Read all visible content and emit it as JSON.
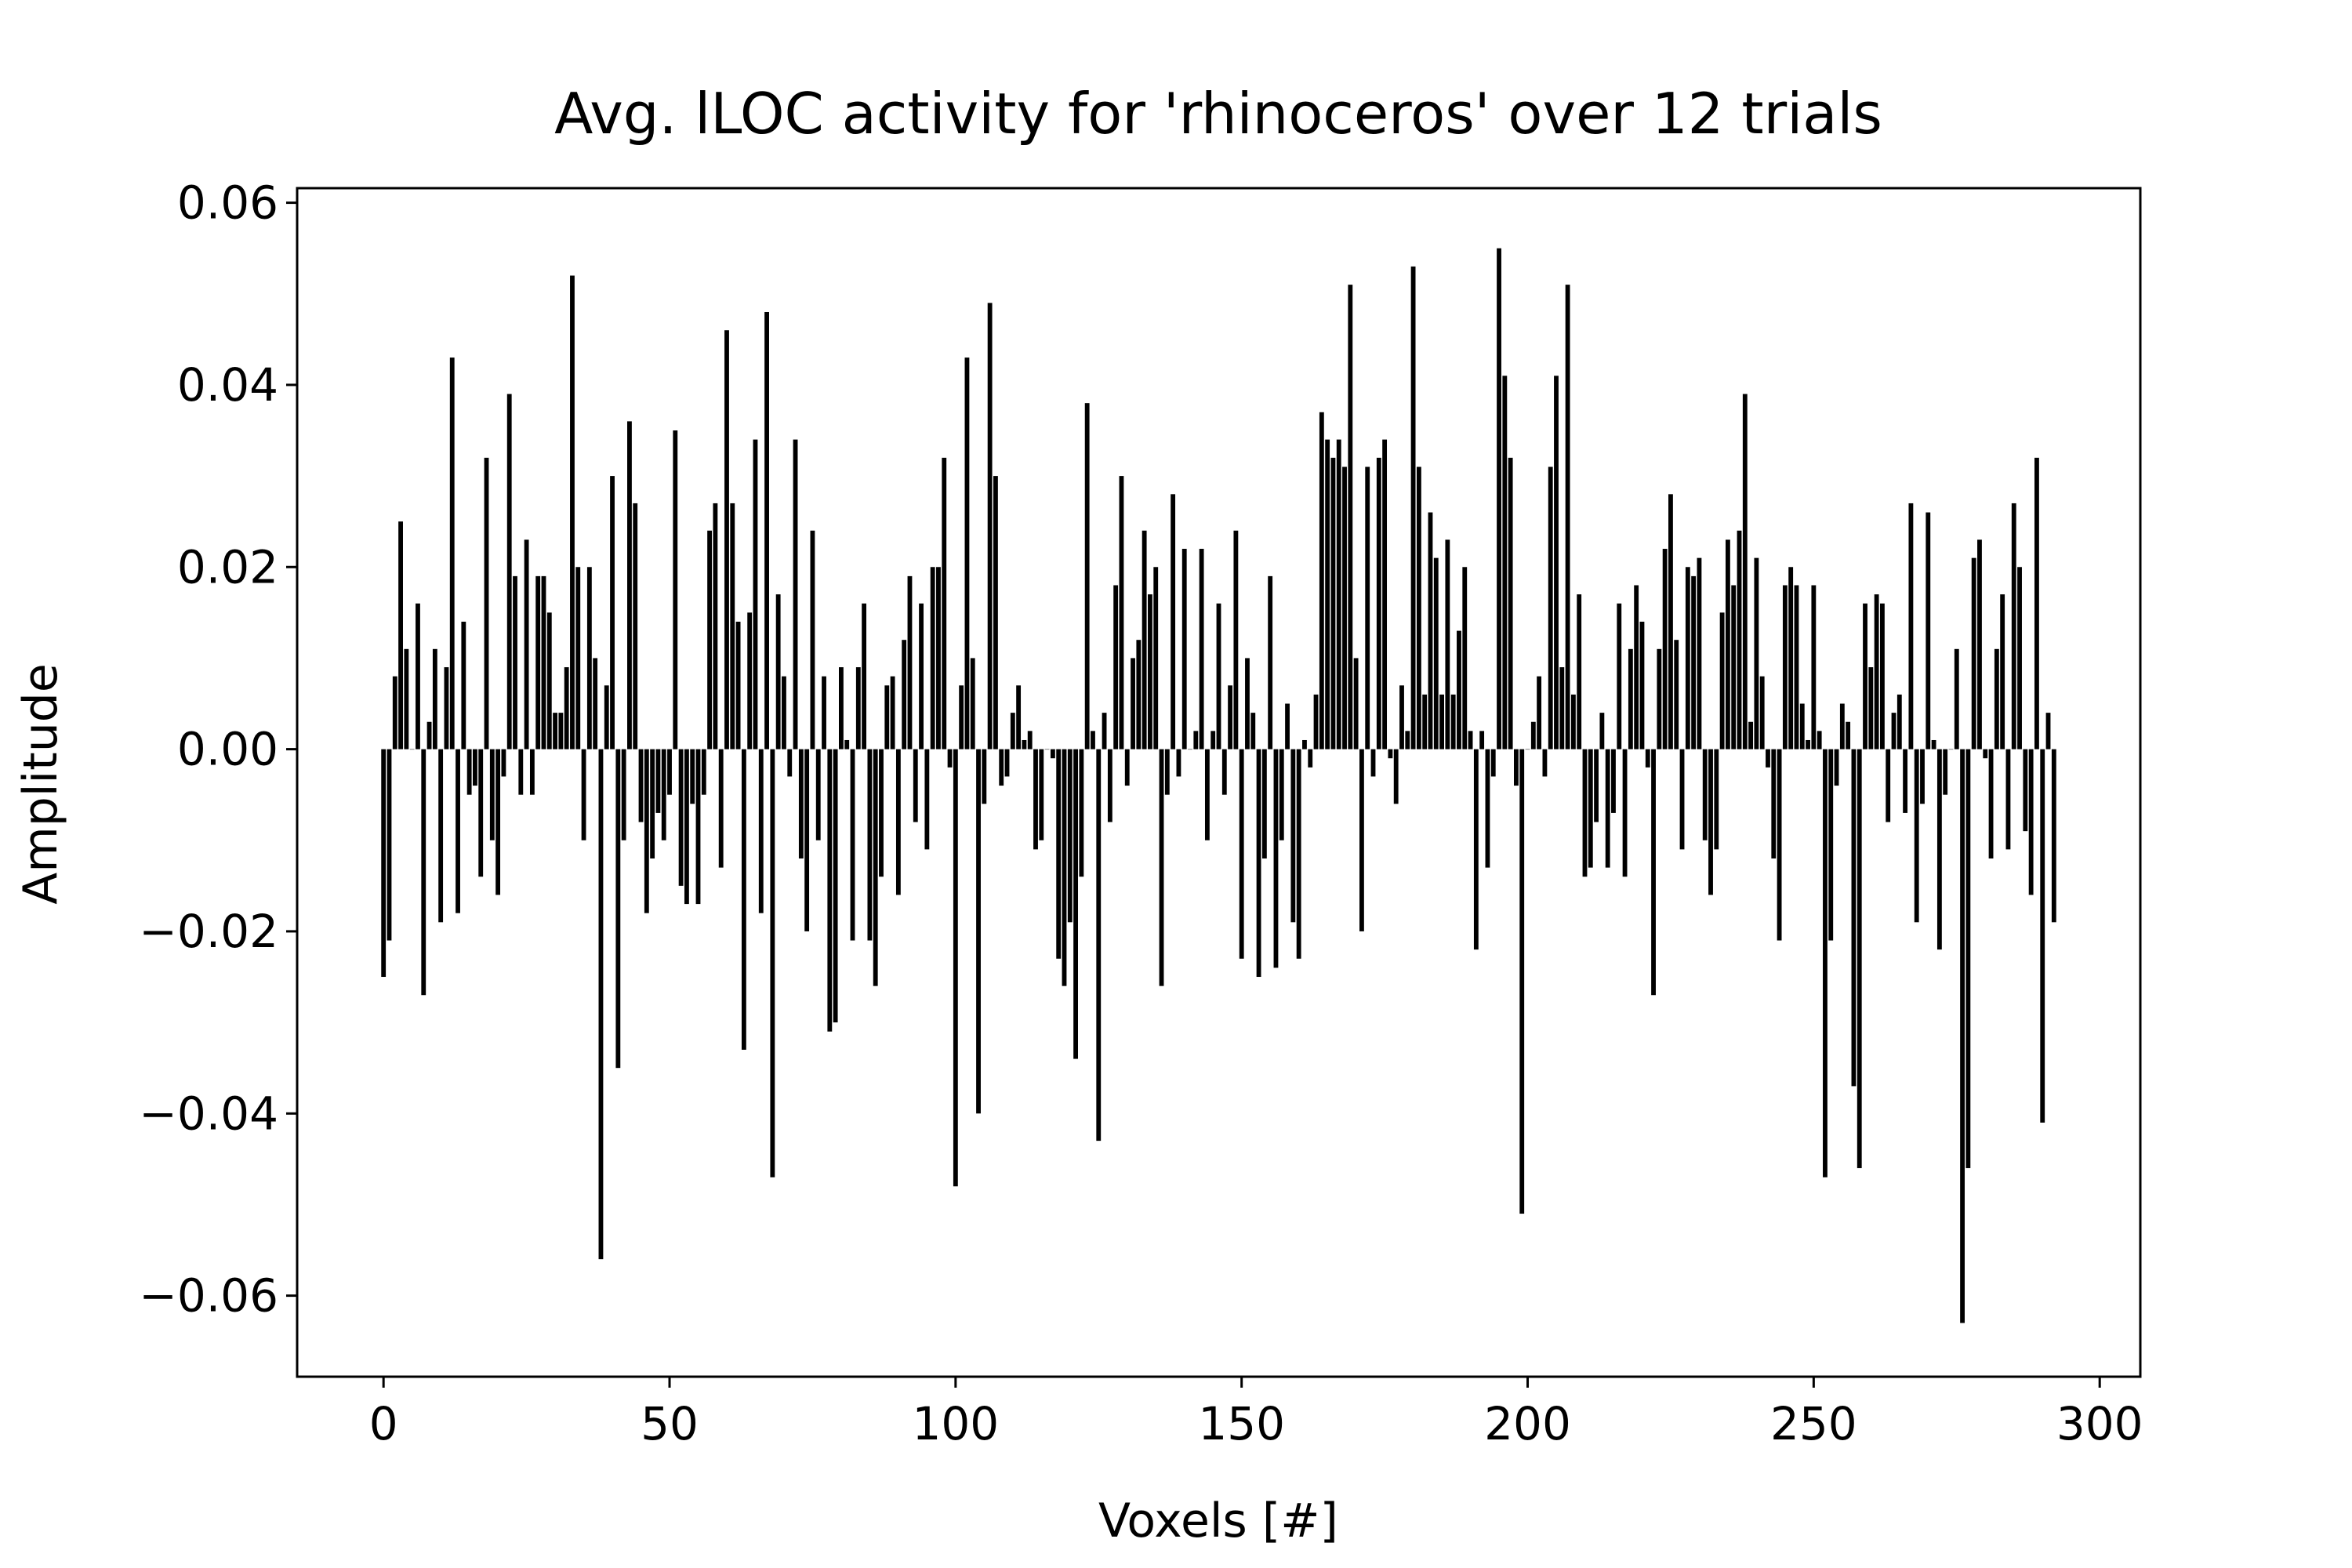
{
  "chart_data": {
    "type": "bar",
    "title": "Avg. lLOC activity for 'rhinoceros' over 12 trials",
    "x_label": "Voxels [#]",
    "y_label": "Amplitude",
    "color": "#000000",
    "x": [
      0,
      1,
      2,
      3,
      4,
      5,
      6,
      7,
      8,
      9,
      10,
      11,
      12,
      13,
      14,
      15,
      16,
      17,
      18,
      19,
      20,
      21,
      22,
      23,
      24,
      25,
      26,
      27,
      28,
      29,
      30,
      31,
      32,
      33,
      34,
      35,
      36,
      37,
      38,
      39,
      40,
      41,
      42,
      43,
      44,
      45,
      46,
      47,
      48,
      49,
      50,
      51,
      52,
      53,
      54,
      55,
      56,
      57,
      58,
      59,
      60,
      61,
      62,
      63,
      64,
      65,
      66,
      67,
      68,
      69,
      70,
      71,
      72,
      73,
      74,
      75,
      76,
      77,
      78,
      79,
      80,
      81,
      82,
      83,
      84,
      85,
      86,
      87,
      88,
      89,
      90,
      91,
      92,
      93,
      94,
      95,
      96,
      97,
      98,
      99,
      100,
      101,
      102,
      103,
      104,
      105,
      106,
      107,
      108,
      109,
      110,
      111,
      112,
      113,
      114,
      115,
      116,
      117,
      118,
      119,
      120,
      121,
      122,
      123,
      124,
      125,
      126,
      127,
      128,
      129,
      130,
      131,
      132,
      133,
      134,
      135,
      136,
      137,
      138,
      139,
      140,
      141,
      142,
      143,
      144,
      145,
      146,
      147,
      148,
      149,
      150,
      151,
      152,
      153,
      154,
      155,
      156,
      157,
      158,
      159,
      160,
      161,
      162,
      163,
      164,
      165,
      166,
      167,
      168,
      169,
      170,
      171,
      172,
      173,
      174,
      175,
      176,
      177,
      178,
      179,
      180,
      181,
      182,
      183,
      184,
      185,
      186,
      187,
      188,
      189,
      190,
      191,
      192,
      193,
      194,
      195,
      196,
      197,
      198,
      199,
      200,
      201,
      202,
      203,
      204,
      205,
      206,
      207,
      208,
      209,
      210,
      211,
      212,
      213,
      214,
      215,
      216,
      217,
      218,
      219,
      220,
      221,
      222,
      223,
      224,
      225,
      226,
      227,
      228,
      229,
      230,
      231,
      232,
      233,
      234,
      235,
      236,
      237,
      238,
      239,
      240,
      241,
      242,
      243,
      244,
      245,
      246,
      247,
      248,
      249,
      250,
      251,
      252,
      253,
      254,
      255,
      256,
      257,
      258,
      259,
      260,
      261,
      262,
      263,
      264,
      265,
      266,
      267,
      268,
      269,
      270,
      271,
      272,
      273,
      274,
      275,
      276,
      277,
      278,
      279,
      280,
      281,
      282,
      283,
      284,
      285,
      286,
      287,
      288,
      289,
      290,
      291,
      292
    ],
    "values": [
      -0.025,
      -0.021,
      0.008,
      0.025,
      0.011,
      0.0,
      0.016,
      -0.027,
      0.003,
      0.011,
      -0.019,
      0.009,
      0.043,
      -0.018,
      0.014,
      -0.005,
      -0.004,
      -0.014,
      0.032,
      -0.01,
      -0.016,
      -0.003,
      0.039,
      0.019,
      -0.005,
      0.023,
      -0.005,
      0.019,
      0.019,
      0.015,
      0.004,
      0.004,
      0.009,
      0.052,
      0.02,
      -0.01,
      0.02,
      0.01,
      -0.056,
      0.007,
      0.03,
      -0.035,
      -0.01,
      0.036,
      0.027,
      -0.008,
      -0.018,
      -0.012,
      -0.007,
      -0.01,
      -0.005,
      0.035,
      -0.015,
      -0.017,
      -0.006,
      -0.017,
      -0.005,
      0.024,
      0.027,
      -0.013,
      0.046,
      0.027,
      0.014,
      -0.033,
      0.015,
      0.034,
      -0.018,
      0.048,
      -0.047,
      0.017,
      0.008,
      -0.003,
      0.034,
      -0.012,
      -0.02,
      0.024,
      -0.01,
      0.008,
      -0.031,
      -0.03,
      0.009,
      0.001,
      -0.021,
      0.009,
      0.016,
      -0.021,
      -0.026,
      -0.014,
      0.007,
      0.008,
      -0.016,
      0.012,
      0.019,
      -0.008,
      0.016,
      -0.011,
      0.02,
      0.02,
      0.032,
      -0.002,
      -0.048,
      0.007,
      0.043,
      0.01,
      -0.04,
      -0.006,
      0.049,
      0.03,
      -0.004,
      -0.003,
      0.004,
      0.007,
      0.001,
      0.002,
      -0.011,
      -0.01,
      0.0,
      -0.001,
      -0.023,
      -0.026,
      -0.019,
      -0.034,
      -0.014,
      0.038,
      0.002,
      -0.043,
      0.004,
      -0.008,
      0.018,
      0.03,
      -0.004,
      0.01,
      0.012,
      0.024,
      0.017,
      0.02,
      -0.026,
      -0.005,
      0.028,
      -0.003,
      0.022,
      0.0,
      0.002,
      0.022,
      -0.01,
      0.002,
      0.016,
      -0.005,
      0.007,
      0.024,
      -0.023,
      0.01,
      0.004,
      -0.025,
      -0.012,
      0.019,
      -0.024,
      -0.01,
      0.005,
      -0.019,
      -0.023,
      0.001,
      -0.002,
      0.006,
      0.037,
      0.034,
      0.032,
      0.034,
      0.031,
      0.051,
      0.01,
      -0.02,
      0.031,
      -0.003,
      0.032,
      0.034,
      -0.001,
      -0.006,
      0.007,
      0.002,
      0.053,
      0.031,
      0.006,
      0.026,
      0.021,
      0.006,
      0.023,
      0.006,
      0.013,
      0.02,
      0.002,
      -0.022,
      0.002,
      -0.013,
      -0.003,
      0.055,
      0.041,
      0.032,
      -0.004,
      -0.051,
      0.0,
      0.003,
      0.008,
      -0.003,
      0.031,
      0.041,
      0.009,
      0.051,
      0.006,
      0.017,
      -0.014,
      -0.013,
      -0.008,
      0.004,
      -0.013,
      -0.007,
      0.016,
      -0.014,
      0.011,
      0.018,
      0.014,
      -0.002,
      -0.027,
      0.011,
      0.022,
      0.028,
      0.012,
      -0.011,
      0.02,
      0.019,
      0.021,
      -0.01,
      -0.016,
      -0.011,
      0.015,
      0.023,
      0.018,
      0.024,
      0.039,
      0.003,
      0.021,
      0.008,
      -0.002,
      -0.012,
      -0.021,
      0.018,
      0.02,
      0.018,
      0.005,
      0.001,
      0.018,
      0.002,
      -0.047,
      -0.021,
      -0.004,
      0.005,
      0.003,
      -0.037,
      -0.046,
      0.016,
      0.009,
      0.017,
      0.016,
      -0.008,
      0.004,
      0.006,
      -0.007,
      0.027,
      -0.019,
      -0.006,
      0.026,
      0.001,
      -0.022,
      -0.005,
      0.0,
      0.011,
      -0.063,
      -0.046,
      0.021,
      0.023,
      -0.001,
      -0.012,
      0.011,
      0.017,
      -0.011,
      0.027,
      0.02,
      -0.009,
      -0.016,
      0.032,
      -0.041,
      0.004,
      -0.019
    ],
    "xlim": [
      -15.1,
      307.1
    ],
    "ylim": [
      -0.0689,
      0.0616
    ],
    "xticks": [
      0,
      50,
      100,
      150,
      200,
      250,
      300
    ],
    "yticks": [
      {
        "value": -0.06,
        "label": "−0.06"
      },
      {
        "value": -0.04,
        "label": "−0.04"
      },
      {
        "value": -0.02,
        "label": "−0.02"
      },
      {
        "value": 0,
        "label": "0.00"
      },
      0.02,
      0.04,
      0.06
    ],
    "grid": false
  }
}
